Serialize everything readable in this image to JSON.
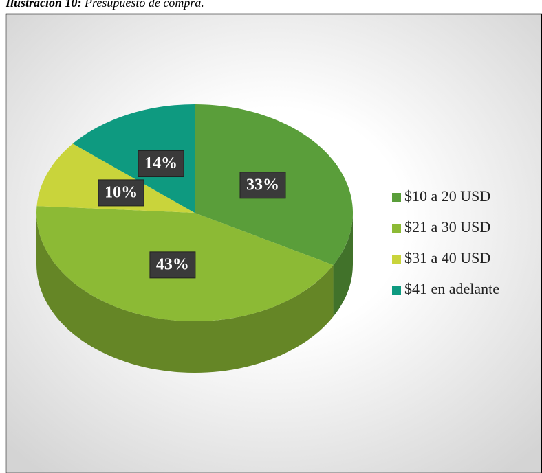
{
  "caption": {
    "label": "Ilustración 10:",
    "text": "Presupuesto de compra."
  },
  "chart_data": {
    "type": "pie3d",
    "categories": [
      "$10 a 20 USD",
      "$21 a 30 USD",
      "$31 a 40 USD",
      "$41 en adelante"
    ],
    "values": [
      33,
      43,
      10,
      14
    ],
    "value_labels": [
      "33%",
      "43%",
      "10%",
      "14%"
    ],
    "colors": [
      "#5a9e3a",
      "#8cba35",
      "#c9d43b",
      "#0e9a80"
    ],
    "legend": "right"
  }
}
